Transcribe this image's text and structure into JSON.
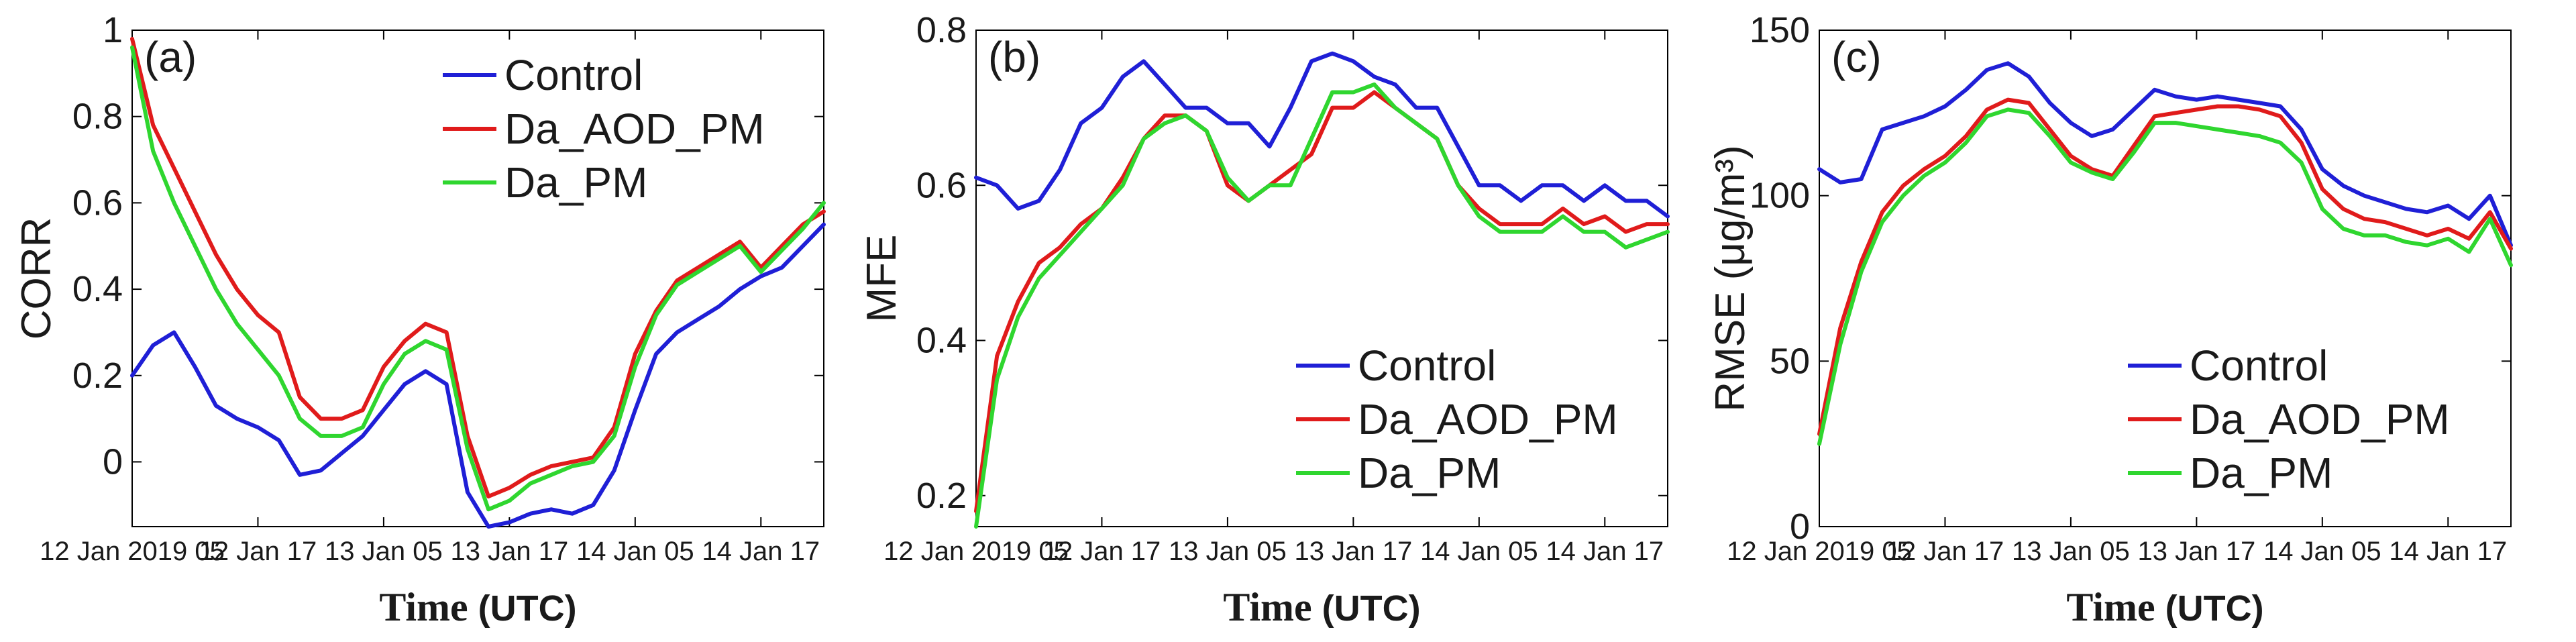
{
  "colors": {
    "Control": "#1f1fd6",
    "Da_AOD_PM": "#e01b1b",
    "Da_PM": "#2fd62f"
  },
  "chart_data": [
    {
      "type": "line",
      "panel_label": "(a)",
      "ylabel": "CORR",
      "xlabel_bold": "Time",
      "xlabel_unit": "(UTC)",
      "ylim": [
        -0.15,
        1.0
      ],
      "yticks": [
        0,
        0.2,
        0.4,
        0.6,
        0.8,
        1
      ],
      "ytick_labels": [
        "0",
        "0.2",
        "0.4",
        "0.6",
        "0.8",
        "1"
      ],
      "xlim": [
        0,
        66
      ],
      "xticks": [
        0,
        12,
        24,
        36,
        48,
        60
      ],
      "xtick_labels": [
        "12 Jan 2019 05",
        "12 Jan 17",
        "13 Jan 05",
        "13 Jan 17",
        "14 Jan 05",
        "14 Jan 17"
      ],
      "legend_position": "top-right",
      "x": [
        0,
        2,
        4,
        6,
        8,
        10,
        12,
        14,
        16,
        18,
        20,
        22,
        24,
        26,
        28,
        30,
        32,
        34,
        36,
        38,
        40,
        42,
        44,
        46,
        48,
        50,
        52,
        54,
        56,
        58,
        60,
        62,
        64,
        66
      ],
      "series": [
        {
          "name": "Control",
          "values": [
            0.2,
            0.27,
            0.3,
            0.22,
            0.13,
            0.1,
            0.08,
            0.05,
            -0.03,
            -0.02,
            0.02,
            0.06,
            0.12,
            0.18,
            0.21,
            0.18,
            -0.07,
            -0.15,
            -0.14,
            -0.12,
            -0.11,
            -0.12,
            -0.1,
            -0.02,
            0.12,
            0.25,
            0.3,
            0.33,
            0.36,
            0.4,
            0.43,
            0.45,
            0.5,
            0.55
          ]
        },
        {
          "name": "Da_AOD_PM",
          "values": [
            0.98,
            0.78,
            0.68,
            0.58,
            0.48,
            0.4,
            0.34,
            0.3,
            0.15,
            0.1,
            0.1,
            0.12,
            0.22,
            0.28,
            0.32,
            0.3,
            0.06,
            -0.08,
            -0.06,
            -0.03,
            -0.01,
            0.0,
            0.01,
            0.08,
            0.25,
            0.35,
            0.42,
            0.45,
            0.48,
            0.51,
            0.45,
            0.5,
            0.55,
            0.58
          ]
        },
        {
          "name": "Da_PM",
          "values": [
            0.96,
            0.72,
            0.6,
            0.5,
            0.4,
            0.32,
            0.26,
            0.2,
            0.1,
            0.06,
            0.06,
            0.08,
            0.18,
            0.25,
            0.28,
            0.26,
            0.03,
            -0.11,
            -0.09,
            -0.05,
            -0.03,
            -0.01,
            0.0,
            0.06,
            0.22,
            0.34,
            0.41,
            0.44,
            0.47,
            0.5,
            0.44,
            0.49,
            0.54,
            0.6
          ]
        }
      ]
    },
    {
      "type": "line",
      "panel_label": "(b)",
      "ylabel": "MFE",
      "xlabel_bold": "Time",
      "xlabel_unit": "(UTC)",
      "ylim": [
        0.16,
        0.8
      ],
      "yticks": [
        0.2,
        0.4,
        0.6,
        0.8
      ],
      "ytick_labels": [
        "0.2",
        "0.4",
        "0.6",
        "0.8"
      ],
      "xlim": [
        0,
        66
      ],
      "xticks": [
        0,
        12,
        24,
        36,
        48,
        60
      ],
      "xtick_labels": [
        "12 Jan 2019 05",
        "12 Jan 17",
        "13 Jan 05",
        "13 Jan 17",
        "14 Jan 05",
        "14 Jan 17"
      ],
      "legend_position": "bottom-right",
      "x": [
        0,
        2,
        4,
        6,
        8,
        10,
        12,
        14,
        16,
        18,
        20,
        22,
        24,
        26,
        28,
        30,
        32,
        34,
        36,
        38,
        40,
        42,
        44,
        46,
        48,
        50,
        52,
        54,
        56,
        58,
        60,
        62,
        64,
        66
      ],
      "series": [
        {
          "name": "Control",
          "values": [
            0.61,
            0.6,
            0.57,
            0.58,
            0.62,
            0.68,
            0.7,
            0.74,
            0.76,
            0.73,
            0.7,
            0.7,
            0.68,
            0.68,
            0.65,
            0.7,
            0.76,
            0.77,
            0.76,
            0.74,
            0.73,
            0.7,
            0.7,
            0.65,
            0.6,
            0.6,
            0.58,
            0.6,
            0.6,
            0.58,
            0.6,
            0.58,
            0.58,
            0.56
          ]
        },
        {
          "name": "Da_AOD_PM",
          "values": [
            0.18,
            0.38,
            0.45,
            0.5,
            0.52,
            0.55,
            0.57,
            0.61,
            0.66,
            0.69,
            0.69,
            0.67,
            0.6,
            0.58,
            0.6,
            0.62,
            0.64,
            0.7,
            0.7,
            0.72,
            0.7,
            0.68,
            0.66,
            0.6,
            0.57,
            0.55,
            0.55,
            0.55,
            0.57,
            0.55,
            0.56,
            0.54,
            0.55,
            0.55
          ]
        },
        {
          "name": "Da_PM",
          "values": [
            0.16,
            0.35,
            0.43,
            0.48,
            0.51,
            0.54,
            0.57,
            0.6,
            0.66,
            0.68,
            0.69,
            0.67,
            0.61,
            0.58,
            0.6,
            0.6,
            0.66,
            0.72,
            0.72,
            0.73,
            0.7,
            0.68,
            0.66,
            0.6,
            0.56,
            0.54,
            0.54,
            0.54,
            0.56,
            0.54,
            0.54,
            0.52,
            0.53,
            0.54
          ]
        }
      ]
    },
    {
      "type": "line",
      "panel_label": "(c)",
      "ylabel": "RMSE (μg/m³)",
      "xlabel_bold": "Time",
      "xlabel_unit": "(UTC)",
      "ylim": [
        0,
        150
      ],
      "yticks": [
        0,
        50,
        100,
        150
      ],
      "ytick_labels": [
        "0",
        "50",
        "100",
        "150"
      ],
      "xlim": [
        0,
        66
      ],
      "xticks": [
        0,
        12,
        24,
        36,
        48,
        60
      ],
      "xtick_labels": [
        "12 Jan 2019 05",
        "12 Jan 17",
        "13 Jan 05",
        "13 Jan 17",
        "14 Jan 05",
        "14 Jan 17"
      ],
      "legend_position": "bottom-right",
      "x": [
        0,
        2,
        4,
        6,
        8,
        10,
        12,
        14,
        16,
        18,
        20,
        22,
        24,
        26,
        28,
        30,
        32,
        34,
        36,
        38,
        40,
        42,
        44,
        46,
        48,
        50,
        52,
        54,
        56,
        58,
        60,
        62,
        64,
        66
      ],
      "series": [
        {
          "name": "Control",
          "values": [
            108,
            104,
            105,
            120,
            122,
            124,
            127,
            132,
            138,
            140,
            136,
            128,
            122,
            118,
            120,
            126,
            132,
            130,
            129,
            130,
            129,
            128,
            127,
            120,
            108,
            103,
            100,
            98,
            96,
            95,
            97,
            93,
            100,
            85
          ]
        },
        {
          "name": "Da_AOD_PM",
          "values": [
            28,
            60,
            80,
            95,
            103,
            108,
            112,
            118,
            126,
            129,
            128,
            120,
            112,
            108,
            106,
            115,
            124,
            125,
            126,
            127,
            127,
            126,
            124,
            116,
            102,
            96,
            93,
            92,
            90,
            88,
            90,
            87,
            95,
            84
          ]
        },
        {
          "name": "Da_PM",
          "values": [
            25,
            55,
            77,
            92,
            100,
            106,
            110,
            116,
            124,
            126,
            125,
            118,
            110,
            107,
            105,
            113,
            122,
            122,
            121,
            120,
            119,
            118,
            116,
            110,
            96,
            90,
            88,
            88,
            86,
            85,
            87,
            83,
            93,
            79
          ]
        }
      ]
    }
  ]
}
